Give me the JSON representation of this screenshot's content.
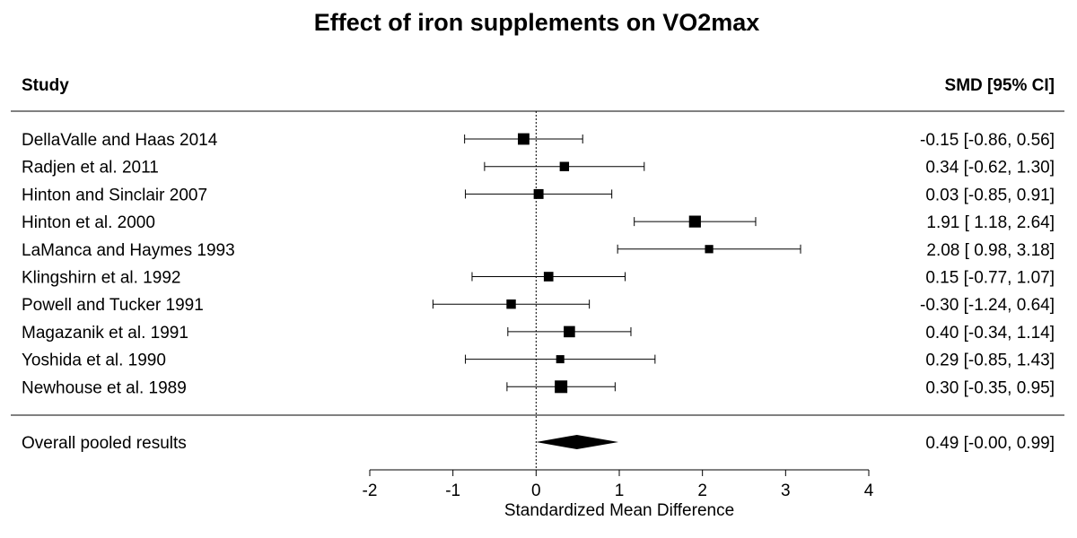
{
  "chart_data": {
    "type": "forest",
    "title": "Effect of iron supplements on VO2max",
    "header_left": "Study",
    "header_right": "SMD [95% CI]",
    "xlabel": "Standardized Mean Difference",
    "xlim": [
      -2,
      4
    ],
    "ticks": [
      "-2",
      "-1",
      "0",
      "1",
      "2",
      "3",
      "4"
    ],
    "tick_values": [
      -2,
      -1,
      0,
      1,
      2,
      3,
      4
    ],
    "reference_line": 0,
    "studies": [
      {
        "name": "DellaValle and Haas 2014",
        "est": -0.15,
        "lo": -0.86,
        "hi": 0.56,
        "label": "-0.15 [-0.86, 0.56]",
        "weight": 0.85
      },
      {
        "name": "Radjen et al. 2011",
        "est": 0.34,
        "lo": -0.62,
        "hi": 1.3,
        "label": "0.34 [-0.62, 1.30]",
        "weight": 0.55
      },
      {
        "name": "Hinton and Sinclair 2007",
        "est": 0.03,
        "lo": -0.85,
        "hi": 0.91,
        "label": "0.03 [-0.85, 0.91]",
        "weight": 0.62
      },
      {
        "name": "Hinton et al. 2000",
        "est": 1.91,
        "lo": 1.18,
        "hi": 2.64,
        "label": "1.91 [ 1.18, 2.64]",
        "weight": 0.9
      },
      {
        "name": "LaManca and Haymes 1993",
        "est": 2.08,
        "lo": 0.98,
        "hi": 3.18,
        "label": "2.08 [ 0.98, 3.18]",
        "weight": 0.4
      },
      {
        "name": "Klingshirn et al. 1992",
        "est": 0.15,
        "lo": -0.77,
        "hi": 1.07,
        "label": "0.15 [-0.77, 1.07]",
        "weight": 0.58
      },
      {
        "name": "Powell and Tucker 1991",
        "est": -0.3,
        "lo": -1.24,
        "hi": 0.64,
        "label": "-0.30 [-1.24, 0.64]",
        "weight": 0.55
      },
      {
        "name": "Magazanik et al. 1991",
        "est": 0.4,
        "lo": -0.34,
        "hi": 1.14,
        "label": "0.40 [-0.34, 1.14]",
        "weight": 0.82
      },
      {
        "name": "Yoshida et al. 1990",
        "est": 0.29,
        "lo": -0.85,
        "hi": 1.43,
        "label": "0.29 [-0.85, 1.43]",
        "weight": 0.38
      },
      {
        "name": "Newhouse et al. 1989",
        "est": 0.3,
        "lo": -0.35,
        "hi": 0.95,
        "label": "0.30 [-0.35, 0.95]",
        "weight": 1.0
      }
    ],
    "overall": {
      "name": "Overall pooled results",
      "est": 0.49,
      "lo": -0.0,
      "hi": 0.99,
      "label": "0.49 [-0.00, 0.99]"
    }
  }
}
